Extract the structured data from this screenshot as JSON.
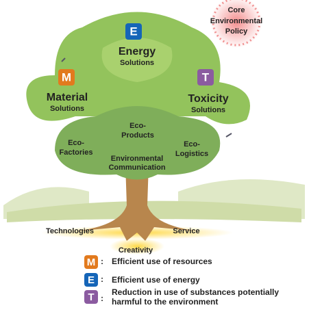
{
  "sun": {
    "lines": [
      "Core",
      "Environmental",
      "Policy"
    ]
  },
  "crown": {
    "energy": {
      "letter": "E",
      "title": "Energy",
      "subtitle": "Solutions"
    },
    "material": {
      "letter": "M",
      "title": "Material",
      "subtitle": "Solutions"
    },
    "toxicity": {
      "letter": "T",
      "title": "Toxicity",
      "subtitle": "Solutions"
    }
  },
  "branches": {
    "products": [
      "Eco-",
      "Products"
    ],
    "factories": [
      "Eco-",
      "Factories"
    ],
    "logistics": [
      "Eco-",
      "Logistics"
    ],
    "communication": [
      "Environmental",
      "Communication"
    ]
  },
  "roots": {
    "left": "Technologies",
    "right": "Service",
    "center": "Creativity"
  },
  "legend": {
    "separator": ":",
    "items": [
      {
        "letter": "M",
        "lines": [
          "Efficient use of resources"
        ]
      },
      {
        "letter": "E",
        "lines": [
          "Efficient use of energy"
        ]
      },
      {
        "letter": "T",
        "lines": [
          "Reduction in use of substances potentially",
          "harmful to the environment"
        ]
      }
    ]
  }
}
